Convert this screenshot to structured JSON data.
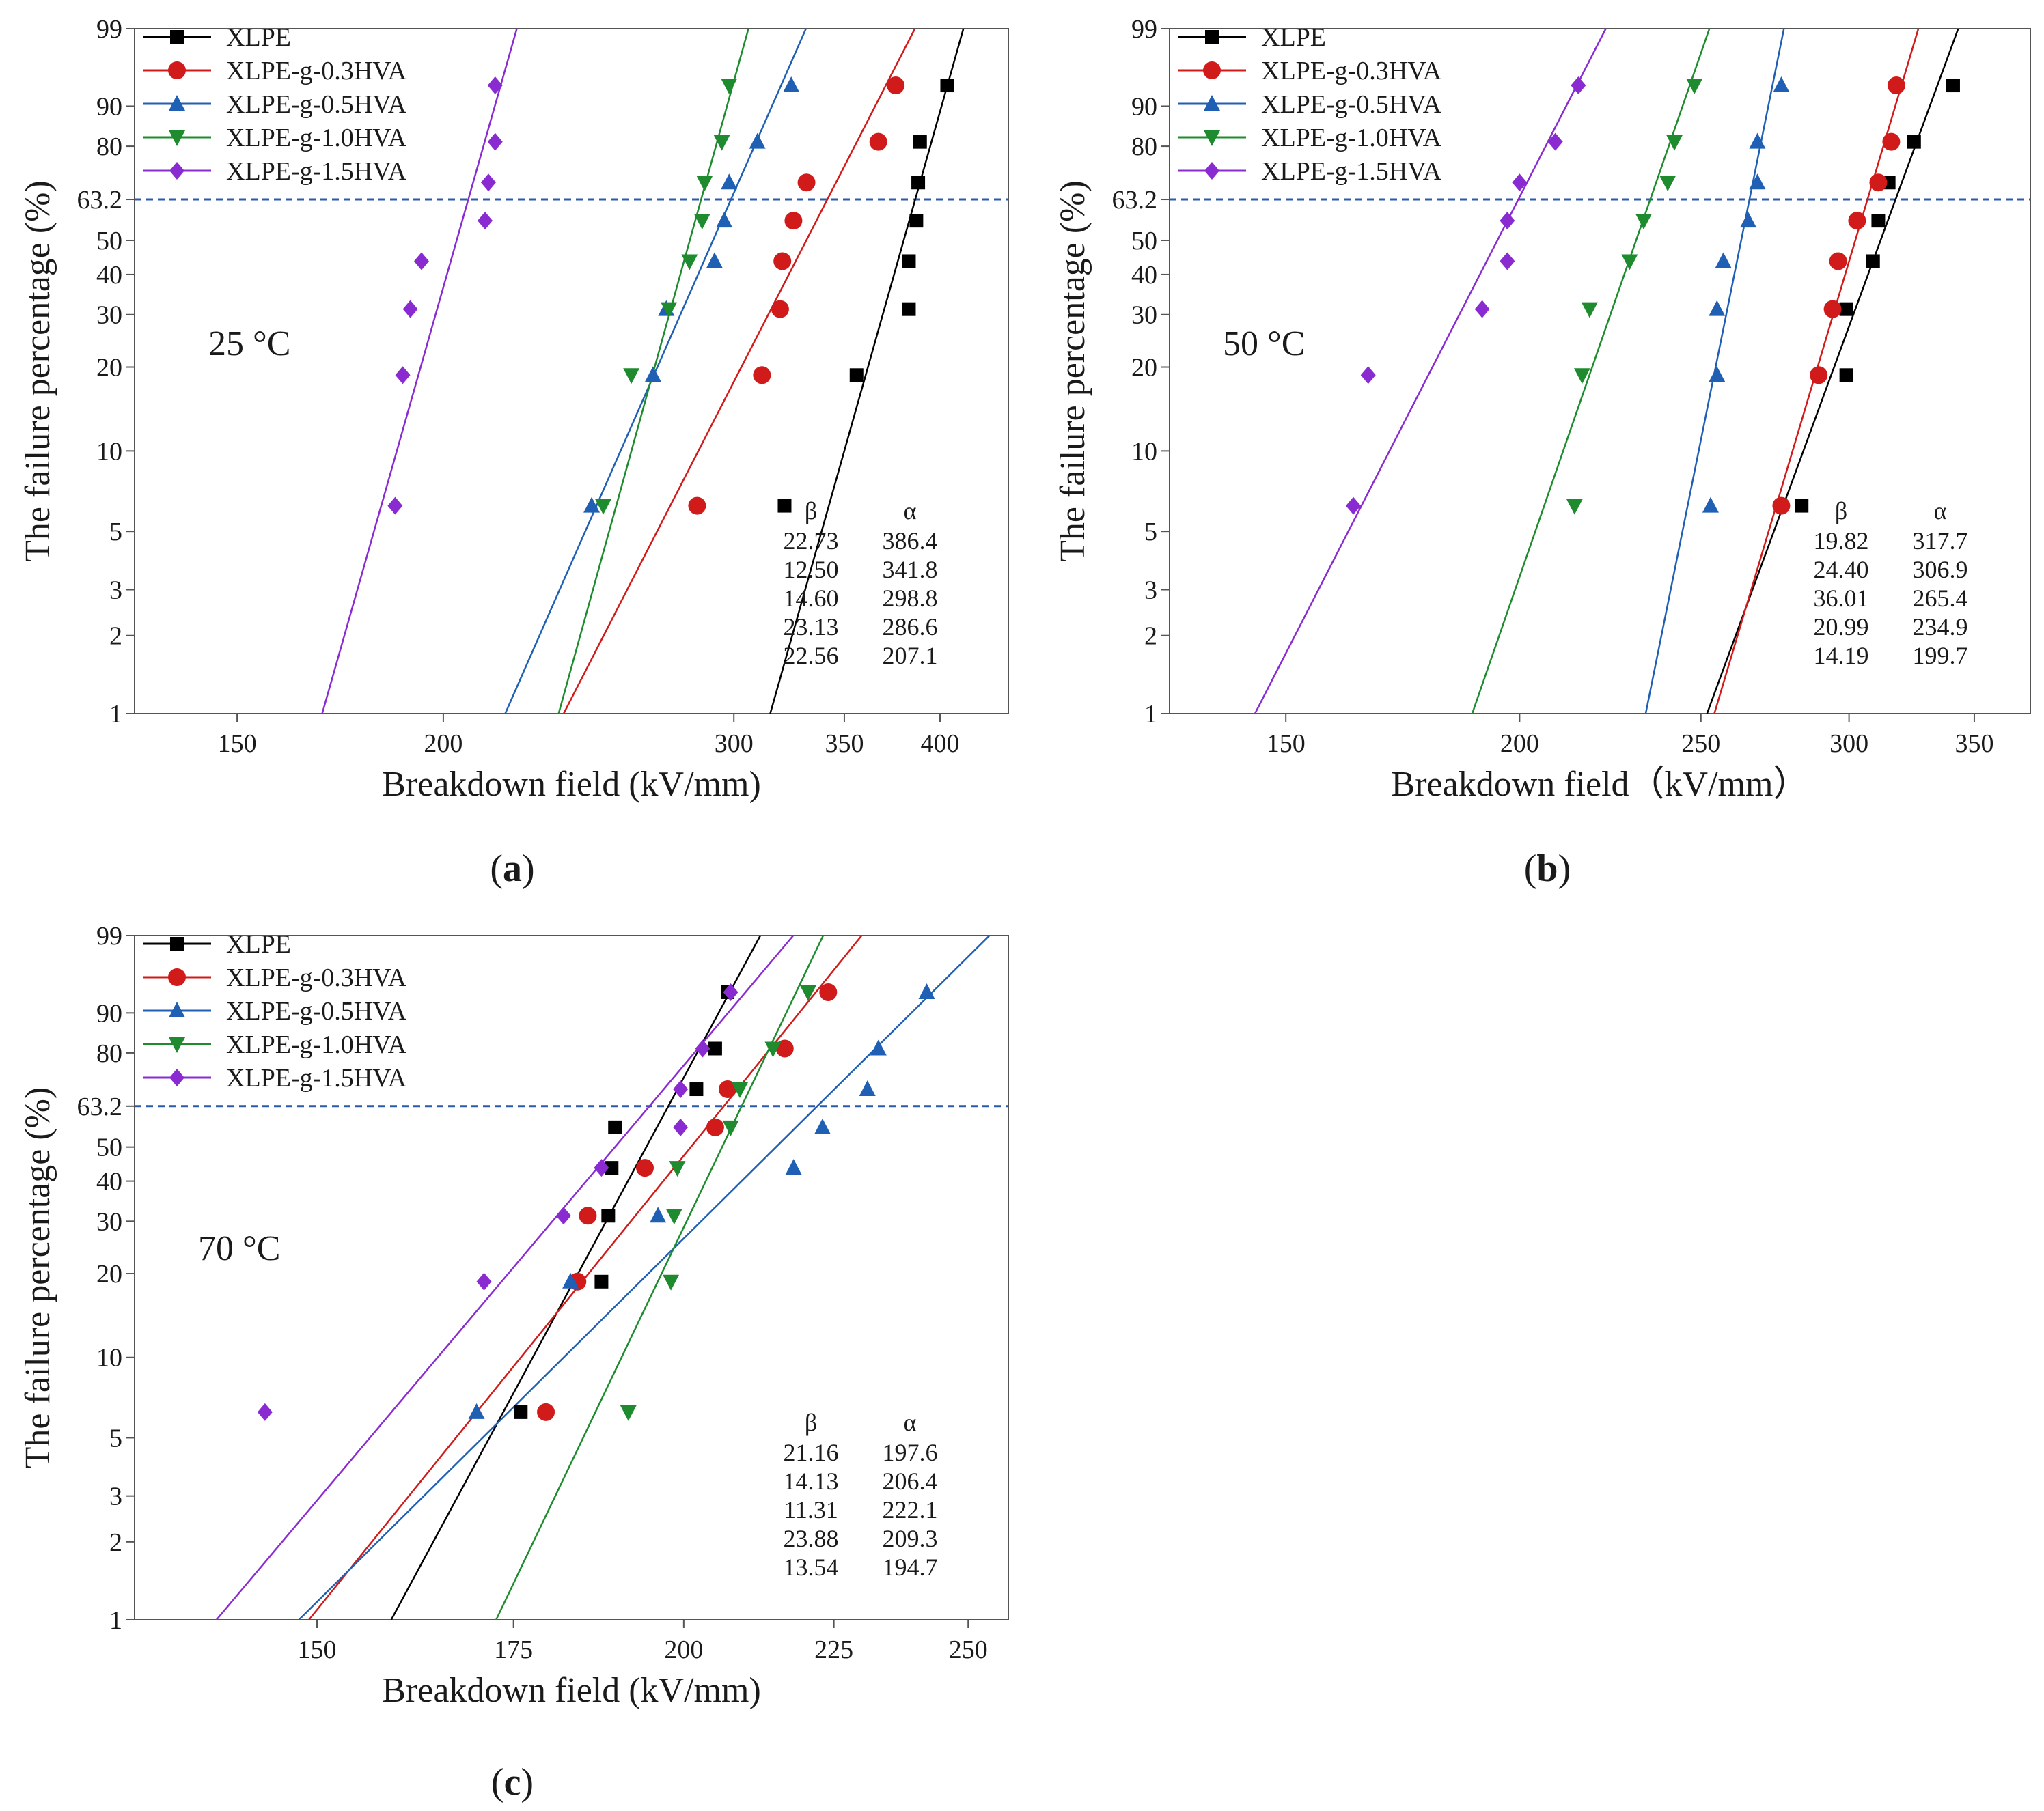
{
  "colors": {
    "XLPE": "#000000",
    "XLPE-g-0.3HVA": "#d11a1a",
    "XLPE-g-0.5HVA": "#1f5fb4",
    "XLPE-g-1.0HVA": "#1e8c2e",
    "XLPE-g-1.5HVA": "#8a2bd1"
  },
  "series_names": [
    "XLPE",
    "XLPE-g-0.3HVA",
    "XLPE-g-0.5HVA",
    "XLPE-g-1.0HVA",
    "XLPE-g-1.5HVA"
  ],
  "markers": [
    "square",
    "circle",
    "triangle-up",
    "triangle-down",
    "diamond"
  ],
  "y_ticks": [
    1,
    2,
    3,
    5,
    10,
    20,
    30,
    40,
    50,
    63.2,
    80,
    90,
    99
  ],
  "y_ref": 63.2,
  "param_header": {
    "beta": "β",
    "alpha": "α"
  },
  "chart_data": [
    {
      "type": "scatter",
      "panel_label": "a",
      "temperature": "25 °C",
      "xlabel": "Breakdown field (kV/mm)",
      "ylabel": "The failure percentage (%)",
      "x_scale": "log",
      "xlim": [
        130,
        440
      ],
      "ylim": [
        1,
        99
      ],
      "x_ticks": [
        150,
        200,
        300,
        350,
        400
      ],
      "legend_position": "top-left",
      "series": [
        {
          "name": "XLPE",
          "beta": "22.73",
          "alpha": "386.4",
          "x": [
            322,
            356,
            383,
            383,
            387,
            388,
            389,
            404
          ]
        },
        {
          "name": "XLPE-g-0.3HVA",
          "beta": "12.50",
          "alpha": "341.8",
          "x": [
            285,
            312,
            320,
            321,
            326,
            332,
            367,
            376
          ]
        },
        {
          "name": "XLPE-g-0.5HVA",
          "beta": "14.60",
          "alpha": "298.8",
          "x": [
            246,
            268,
            273,
            292,
            296,
            298,
            310,
            325
          ]
        },
        {
          "name": "XLPE-g-1.0HVA",
          "beta": "23.13",
          "alpha": "286.6",
          "x": [
            250,
            260,
            274,
            282,
            287,
            288,
            295,
            298
          ]
        },
        {
          "name": "XLPE-g-1.5HVA",
          "beta": "22.56",
          "alpha": "207.1",
          "x": [
            187,
            189,
            191,
            194,
            212,
            213,
            215,
            215
          ]
        }
      ]
    },
    {
      "type": "scatter",
      "panel_label": "b",
      "temperature": "50 °C",
      "xlabel": "Breakdown field（kV/mm）",
      "ylabel": "The failure percentage (%)",
      "x_scale": "log",
      "xlim": [
        130,
        375
      ],
      "ylim": [
        1,
        99
      ],
      "x_ticks": [
        150,
        200,
        250,
        300,
        350
      ],
      "legend_position": "top-left",
      "series": [
        {
          "name": "XLPE",
          "beta": "19.82",
          "alpha": "317.7",
          "x": [
            283,
            299,
            299,
            309,
            311,
            315,
            325,
            341
          ]
        },
        {
          "name": "XLPE-g-0.3HVA",
          "beta": "24.40",
          "alpha": "306.9",
          "x": [
            276,
            289,
            294,
            296,
            303,
            311,
            316,
            318
          ]
        },
        {
          "name": "XLPE-g-0.5HVA",
          "beta": "36.01",
          "alpha": "265.4",
          "x": [
            253,
            255,
            255,
            257,
            265,
            268,
            268,
            276
          ]
        },
        {
          "name": "XLPE-g-1.0HVA",
          "beta": "20.99",
          "alpha": "234.9",
          "x": [
            214,
            216,
            218,
            229,
            233,
            240,
            242,
            248
          ]
        },
        {
          "name": "XLPE-g-1.5HVA",
          "beta": "14.19",
          "alpha": "199.7",
          "x": [
            163,
            166,
            191,
            197,
            197,
            200,
            209,
            215
          ]
        }
      ]
    },
    {
      "type": "scatter",
      "panel_label": "c",
      "temperature": "70 °C",
      "xlabel": "Breakdown field (kV/mm)",
      "ylabel": "The failure percentage (%)",
      "x_scale": "log",
      "xlim": [
        130,
        258
      ],
      "ylim": [
        1,
        99
      ],
      "x_ticks": [
        150,
        175,
        200,
        225,
        250
      ],
      "legend_position": "top-left",
      "series": [
        {
          "name": "XLPE",
          "beta": "21.16",
          "alpha": "197.6",
          "x": [
            176,
            187.5,
            188.5,
            189,
            189.5,
            202,
            205,
            207
          ]
        },
        {
          "name": "XLPE-g-0.3HVA",
          "beta": "14.13",
          "alpha": "206.4",
          "x": [
            179.5,
            184,
            185.5,
            194,
            205,
            207,
            216.5,
            224
          ]
        },
        {
          "name": "XLPE-g-0.5HVA",
          "beta": "11.31",
          "alpha": "222.1",
          "x": [
            170,
            183,
            196,
            218,
            223,
            231,
            233,
            242
          ]
        },
        {
          "name": "XLPE-g-1.0HVA",
          "beta": "23.88",
          "alpha": "209.3",
          "x": [
            191.5,
            198,
            198.5,
            199,
            207.5,
            209,
            214.5,
            220.5
          ]
        },
        {
          "name": "XLPE-g-1.5HVA",
          "beta": "13.54",
          "alpha": "194.7",
          "x": [
            144,
            171,
            182,
            187.5,
            199.5,
            199.5,
            203,
            207.5
          ]
        }
      ]
    }
  ]
}
